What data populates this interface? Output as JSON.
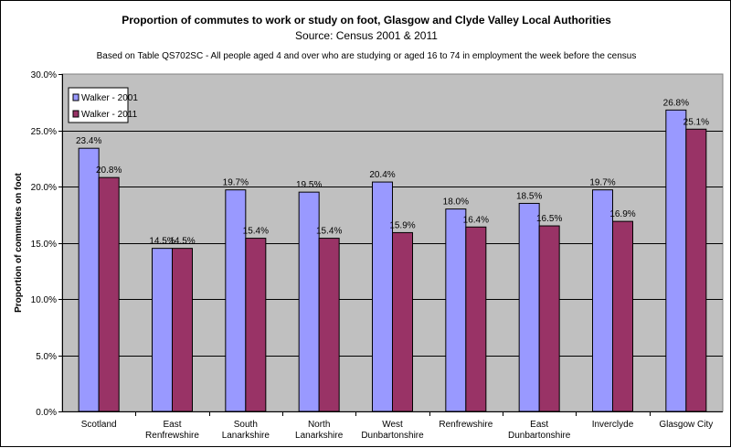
{
  "chart_data": {
    "type": "bar",
    "title": "Proportion of commutes to work or study on foot, Glasgow and Clyde Valley Local Authorities",
    "subtitle": "Source: Census 2001 & 2011",
    "note": "Based on Table QS702SC - All people aged 4 and over who are studying or aged 16 to 74 in employment the week before the census",
    "ylabel": "Proportion of commutes on foot",
    "xlabel": "",
    "ylim": [
      0,
      30
    ],
    "yticks": [
      "0.0%",
      "5.0%",
      "10.0%",
      "15.0%",
      "20.0%",
      "25.0%",
      "30.0%"
    ],
    "grid": true,
    "legend_position": "top-left",
    "categories": [
      [
        "Scotland"
      ],
      [
        "East",
        "Renfrewshire"
      ],
      [
        "South",
        "Lanarkshire"
      ],
      [
        "North",
        "Lanarkshire"
      ],
      [
        "West",
        "Dunbartonshire"
      ],
      [
        "Renfrewshire"
      ],
      [
        "East",
        "Dunbartonshire"
      ],
      [
        "Inverclyde"
      ],
      [
        "Glasgow City"
      ]
    ],
    "series": [
      {
        "name": "Walker - 2001",
        "color": "#9999ff",
        "values": [
          23.4,
          14.5,
          19.7,
          19.5,
          20.4,
          18.0,
          18.5,
          19.7,
          26.8
        ],
        "labels": [
          "23.4%",
          "14.5%",
          "19.7%",
          "19.5%",
          "20.4%",
          "18.0%",
          "18.5%",
          "19.7%",
          "26.8%"
        ]
      },
      {
        "name": "Walker - 2011",
        "color": "#993366",
        "values": [
          20.8,
          14.5,
          15.4,
          15.4,
          15.9,
          16.4,
          16.5,
          16.9,
          25.1
        ],
        "labels": [
          "20.8%",
          "14.5%",
          "15.4%",
          "15.4%",
          "15.9%",
          "16.4%",
          "16.5%",
          "16.9%",
          "25.1%"
        ]
      }
    ],
    "plot_background": "#c0c0c0"
  }
}
